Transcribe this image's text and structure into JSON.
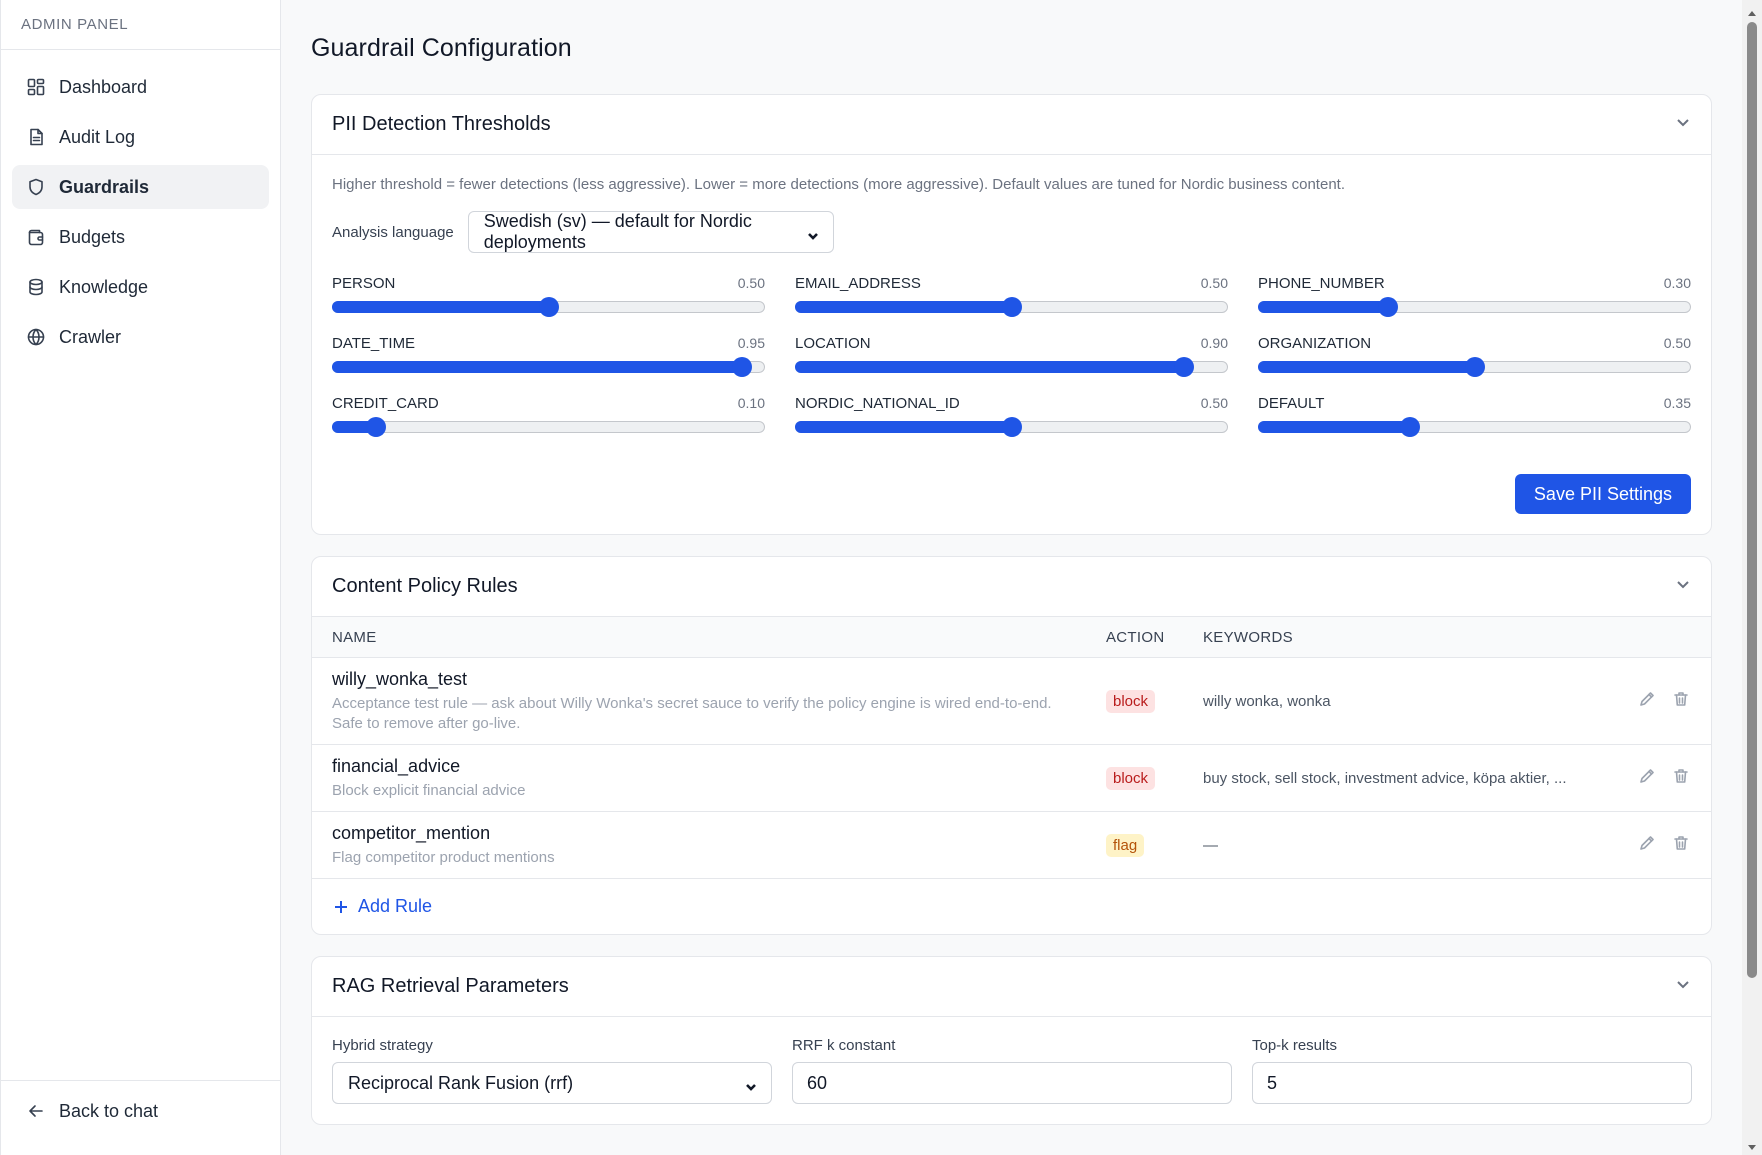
{
  "sidebar": {
    "brand": "ADMIN PANEL",
    "items": [
      {
        "label": "Dashboard",
        "icon": "dashboard-icon"
      },
      {
        "label": "Audit Log",
        "icon": "document-icon"
      },
      {
        "label": "Guardrails",
        "icon": "shield-icon",
        "active": true
      },
      {
        "label": "Budgets",
        "icon": "wallet-icon"
      },
      {
        "label": "Knowledge",
        "icon": "database-icon"
      },
      {
        "label": "Crawler",
        "icon": "globe-icon"
      }
    ],
    "back": {
      "label": "Back to chat",
      "icon": "arrow-left-icon"
    }
  },
  "page": {
    "title": "Guardrail Configuration"
  },
  "pii": {
    "title": "PII Detection Thresholds",
    "help": "Higher threshold = fewer detections (less aggressive). Lower = more detections (more aggressive). Default values are tuned for Nordic business content.",
    "language_label": "Analysis language",
    "language_value": "Swedish (sv) — default for Nordic deployments",
    "thresholds": [
      {
        "name": "PERSON",
        "value": 0.5,
        "display": "0.50"
      },
      {
        "name": "EMAIL_ADDRESS",
        "value": 0.5,
        "display": "0.50"
      },
      {
        "name": "PHONE_NUMBER",
        "value": 0.3,
        "display": "0.30"
      },
      {
        "name": "DATE_TIME",
        "value": 0.95,
        "display": "0.95"
      },
      {
        "name": "LOCATION",
        "value": 0.9,
        "display": "0.90"
      },
      {
        "name": "ORGANIZATION",
        "value": 0.5,
        "display": "0.50"
      },
      {
        "name": "CREDIT_CARD",
        "value": 0.1,
        "display": "0.10"
      },
      {
        "name": "NORDIC_NATIONAL_ID",
        "value": 0.5,
        "display": "0.50"
      },
      {
        "name": "DEFAULT",
        "value": 0.35,
        "display": "0.35"
      }
    ],
    "save_label": "Save PII Settings"
  },
  "policy": {
    "title": "Content Policy Rules",
    "columns": {
      "name": "NAME",
      "action": "ACTION",
      "keywords": "KEYWORDS"
    },
    "rules": [
      {
        "name": "willy_wonka_test",
        "description": "Acceptance test rule — ask about Willy Wonka's secret sauce to verify the policy engine is wired end-to-end. Safe to remove after go-live.",
        "action": "block",
        "keywords": "willy wonka, wonka"
      },
      {
        "name": "financial_advice",
        "description": "Block explicit financial advice",
        "action": "block",
        "keywords": "buy stock, sell stock, investment advice, köpa aktier, ..."
      },
      {
        "name": "competitor_mention",
        "description": "Flag competitor product mentions",
        "action": "flag",
        "keywords": "—"
      }
    ],
    "add_label": "Add Rule"
  },
  "rag": {
    "title": "RAG Retrieval Parameters",
    "strategy_label": "Hybrid strategy",
    "strategy_value": "Reciprocal Rank Fusion (rrf)",
    "rrf_label": "RRF k constant",
    "rrf_value": "60",
    "topk_label": "Top-k results",
    "topk_value": "5"
  },
  "colors": {
    "accent": "#1f55e6",
    "block_bg": "#fde2e2",
    "block_text": "#b91c1c",
    "flag_bg": "#fef3c7",
    "flag_text": "#b45309"
  }
}
